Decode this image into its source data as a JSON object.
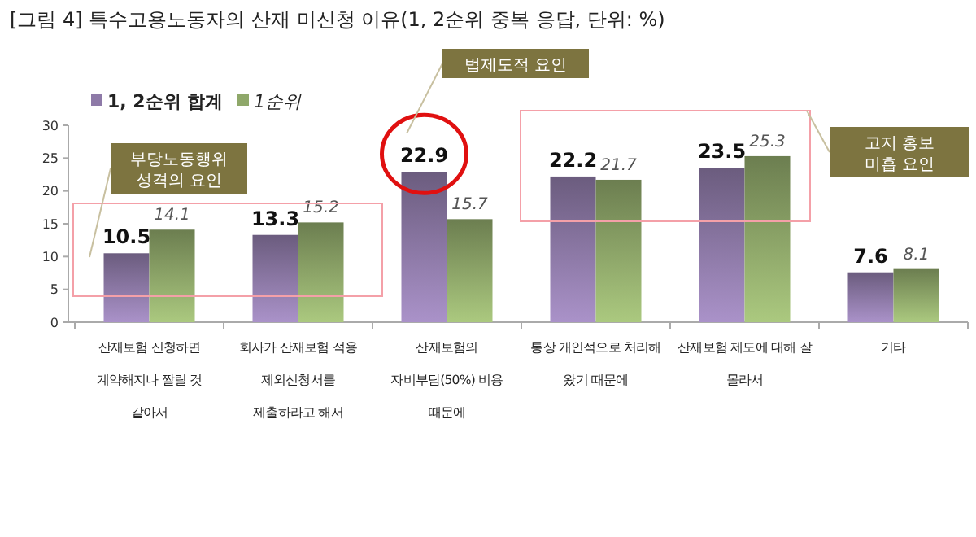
{
  "chart_data": {
    "type": "bar",
    "title": "[그림 4] 특수고용노동자의 산재 미신청 이유(1, 2순위 중복 응답, 단위: %)",
    "categories": [
      "산재보험 신청하면\n계약해지나 짤릴 것\n같아서",
      "회사가 산재보험 적용\n제외신청서를\n제출하라고 해서",
      "산재보험의\n자비부담(50%) 비용\n때문에",
      "통상 개인적으로 처리해\n왔기 때문에",
      "산재보험 제도에 대해 잘\n몰라서",
      "기타"
    ],
    "series": [
      {
        "name": "1, 2순위 합계",
        "color": "#8e7aa8",
        "values": [
          10.5,
          13.3,
          22.9,
          22.2,
          23.5,
          7.6
        ]
      },
      {
        "name": "1순위",
        "color": "#8fa86a",
        "values": [
          14.1,
          15.2,
          15.7,
          21.7,
          25.3,
          8.1
        ]
      }
    ],
    "ylim": [
      0,
      30
    ],
    "yticks": [
      0,
      5,
      10,
      15,
      20,
      25,
      30
    ],
    "grid": false,
    "legend": "top left",
    "data_labels": true,
    "annotations": [
      "부당노동행위\n성격의 요인",
      "법제도적 요인",
      "고지 홍보\n미흡 요인"
    ]
  }
}
